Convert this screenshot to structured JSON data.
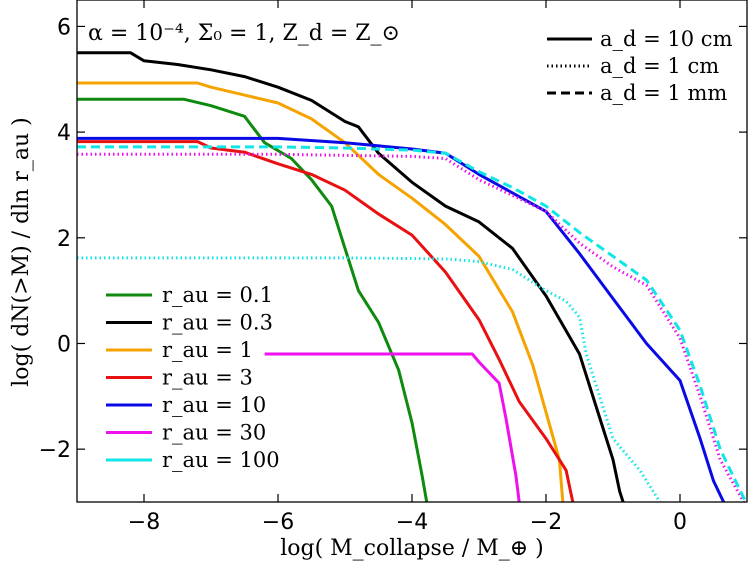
{
  "chart_data": {
    "type": "line",
    "annotation": "α = 10⁻⁴, Σ₀ = 1, Z_d = Z_⊙",
    "xlabel": "log( M_collapse / M_⊕ )",
    "ylabel": "log( dN(>M) / dln r_au )",
    "xlim": [
      -9,
      1
    ],
    "ylim": [
      -3,
      6.5
    ],
    "xticks": [
      -8,
      -6,
      -4,
      -2,
      0
    ],
    "xtick_labels": [
      "−8",
      "−6",
      "−4",
      "−2",
      "0"
    ],
    "yticks": [
      -2,
      0,
      2,
      4,
      6
    ],
    "ytick_labels": [
      "−2",
      "0",
      "2",
      "4",
      "6"
    ],
    "grid": false,
    "style_legend": [
      {
        "label": "a_d = 10 cm",
        "dash": "solid"
      },
      {
        "label": "a_d = 1 cm",
        "dash": "dotted"
      },
      {
        "label": "a_d = 1 mm",
        "dash": "dashed"
      }
    ],
    "color_legend": [
      {
        "label": "r_au = 0.1",
        "color": "#0e8a0e"
      },
      {
        "label": "r_au = 0.3",
        "color": "#000000"
      },
      {
        "label": "r_au = 1",
        "color": "#f5a300"
      },
      {
        "label": "r_au = 3",
        "color": "#e81010"
      },
      {
        "label": "r_au = 10",
        "color": "#0a0ae6"
      },
      {
        "label": "r_au = 30",
        "color": "#ee10ee"
      },
      {
        "label": "r_au = 100",
        "color": "#10e6e6"
      }
    ],
    "series": [
      {
        "color": "#0e8a0e",
        "dash": "solid",
        "points": [
          [
            -9,
            4.62
          ],
          [
            -7.4,
            4.62
          ],
          [
            -7,
            4.5
          ],
          [
            -6.5,
            4.3
          ],
          [
            -6.2,
            3.8
          ],
          [
            -5.8,
            3.5
          ],
          [
            -5.5,
            3.1
          ],
          [
            -5.2,
            2.6
          ],
          [
            -5,
            1.8
          ],
          [
            -4.8,
            1.0
          ],
          [
            -4.5,
            0.4
          ],
          [
            -4.2,
            -0.5
          ],
          [
            -4,
            -1.5
          ],
          [
            -3.85,
            -2.5
          ],
          [
            -3.78,
            -3.0
          ]
        ]
      },
      {
        "color": "#000000",
        "dash": "solid",
        "points": [
          [
            -9,
            5.5
          ],
          [
            -8.2,
            5.5
          ],
          [
            -8,
            5.35
          ],
          [
            -7.5,
            5.28
          ],
          [
            -7,
            5.18
          ],
          [
            -6.5,
            5.05
          ],
          [
            -6,
            4.85
          ],
          [
            -5.5,
            4.6
          ],
          [
            -5,
            4.2
          ],
          [
            -4.8,
            4.1
          ],
          [
            -4.5,
            3.6
          ],
          [
            -4,
            3.05
          ],
          [
            -3.5,
            2.6
          ],
          [
            -3,
            2.3
          ],
          [
            -2.5,
            1.8
          ],
          [
            -2,
            0.9
          ],
          [
            -1.5,
            -0.2
          ],
          [
            -1.2,
            -1.4
          ],
          [
            -1,
            -2.2
          ],
          [
            -0.9,
            -2.8
          ],
          [
            -0.85,
            -3.0
          ]
        ]
      },
      {
        "color": "#f5a300",
        "dash": "solid",
        "points": [
          [
            -9,
            4.93
          ],
          [
            -7.2,
            4.93
          ],
          [
            -7,
            4.85
          ],
          [
            -6.5,
            4.7
          ],
          [
            -6,
            4.55
          ],
          [
            -5.5,
            4.25
          ],
          [
            -5,
            3.8
          ],
          [
            -4.5,
            3.2
          ],
          [
            -4,
            2.75
          ],
          [
            -3.5,
            2.25
          ],
          [
            -3,
            1.65
          ],
          [
            -2.5,
            0.6
          ],
          [
            -2.2,
            -0.4
          ],
          [
            -2,
            -1.3
          ],
          [
            -1.8,
            -2.2
          ],
          [
            -1.75,
            -3.0
          ]
        ]
      },
      {
        "color": "#e81010",
        "dash": "solid",
        "points": [
          [
            -9,
            3.82
          ],
          [
            -7.2,
            3.82
          ],
          [
            -7,
            3.7
          ],
          [
            -6.5,
            3.62
          ],
          [
            -6,
            3.4
          ],
          [
            -5.5,
            3.2
          ],
          [
            -5,
            2.9
          ],
          [
            -4.5,
            2.45
          ],
          [
            -4,
            2.05
          ],
          [
            -3.5,
            1.35
          ],
          [
            -3,
            0.45
          ],
          [
            -2.7,
            -0.3
          ],
          [
            -2.4,
            -1.1
          ],
          [
            -2,
            -1.8
          ],
          [
            -1.7,
            -2.4
          ],
          [
            -1.6,
            -3.0
          ]
        ]
      },
      {
        "color": "#0a0ae6",
        "dash": "solid",
        "points": [
          [
            -9,
            3.88
          ],
          [
            -6,
            3.88
          ],
          [
            -5,
            3.8
          ],
          [
            -4,
            3.68
          ],
          [
            -3.5,
            3.6
          ],
          [
            -3,
            3.2
          ],
          [
            -2.5,
            2.85
          ],
          [
            -2,
            2.5
          ],
          [
            -1.5,
            1.7
          ],
          [
            -1,
            0.85
          ],
          [
            -0.5,
            0.0
          ],
          [
            0,
            -0.7
          ],
          [
            0.3,
            -1.8
          ],
          [
            0.5,
            -2.6
          ],
          [
            0.65,
            -3.0
          ]
        ]
      },
      {
        "color": "#ee10ee",
        "dash": "solid",
        "points": [
          [
            -6.2,
            -0.2
          ],
          [
            -3.1,
            -0.2
          ],
          [
            -3,
            -0.35
          ],
          [
            -2.7,
            -0.75
          ],
          [
            -2.6,
            -1.4
          ],
          [
            -2.45,
            -2.5
          ],
          [
            -2.4,
            -3.0
          ]
        ]
      },
      {
        "color": "#ee10ee",
        "dash": "dotted",
        "points": [
          [
            -9,
            3.58
          ],
          [
            -6,
            3.58
          ],
          [
            -5,
            3.56
          ],
          [
            -4,
            3.54
          ],
          [
            -3.5,
            3.5
          ],
          [
            -3,
            3.1
          ],
          [
            -2.5,
            2.8
          ],
          [
            -2,
            2.5
          ],
          [
            -1.5,
            1.9
          ],
          [
            -1,
            1.45
          ],
          [
            -0.5,
            1.1
          ],
          [
            0,
            0.1
          ],
          [
            0.3,
            -1.0
          ],
          [
            0.6,
            -2.2
          ],
          [
            0.95,
            -3.0
          ]
        ]
      },
      {
        "color": "#10e6e6",
        "dash": "dashed",
        "points": [
          [
            -9,
            3.72
          ],
          [
            -6,
            3.72
          ],
          [
            -5,
            3.7
          ],
          [
            -4,
            3.66
          ],
          [
            -3.5,
            3.6
          ],
          [
            -3,
            3.25
          ],
          [
            -2.5,
            2.95
          ],
          [
            -2,
            2.6
          ],
          [
            -1.5,
            2.1
          ],
          [
            -1,
            1.65
          ],
          [
            -0.5,
            1.2
          ],
          [
            0,
            0.25
          ],
          [
            0.3,
            -0.8
          ],
          [
            0.6,
            -2.0
          ],
          [
            0.98,
            -3.0
          ]
        ]
      },
      {
        "color": "#10e6e6",
        "dash": "dotted",
        "points": [
          [
            -9,
            1.62
          ],
          [
            -5,
            1.62
          ],
          [
            -3.5,
            1.6
          ],
          [
            -3,
            1.55
          ],
          [
            -2.5,
            1.4
          ],
          [
            -2,
            1.0
          ],
          [
            -1.7,
            0.8
          ],
          [
            -1.5,
            0.5
          ],
          [
            -1.4,
            -0.2
          ],
          [
            -1.2,
            -1.0
          ],
          [
            -1,
            -1.8
          ],
          [
            -0.6,
            -2.4
          ],
          [
            -0.3,
            -3.0
          ]
        ]
      }
    ]
  }
}
